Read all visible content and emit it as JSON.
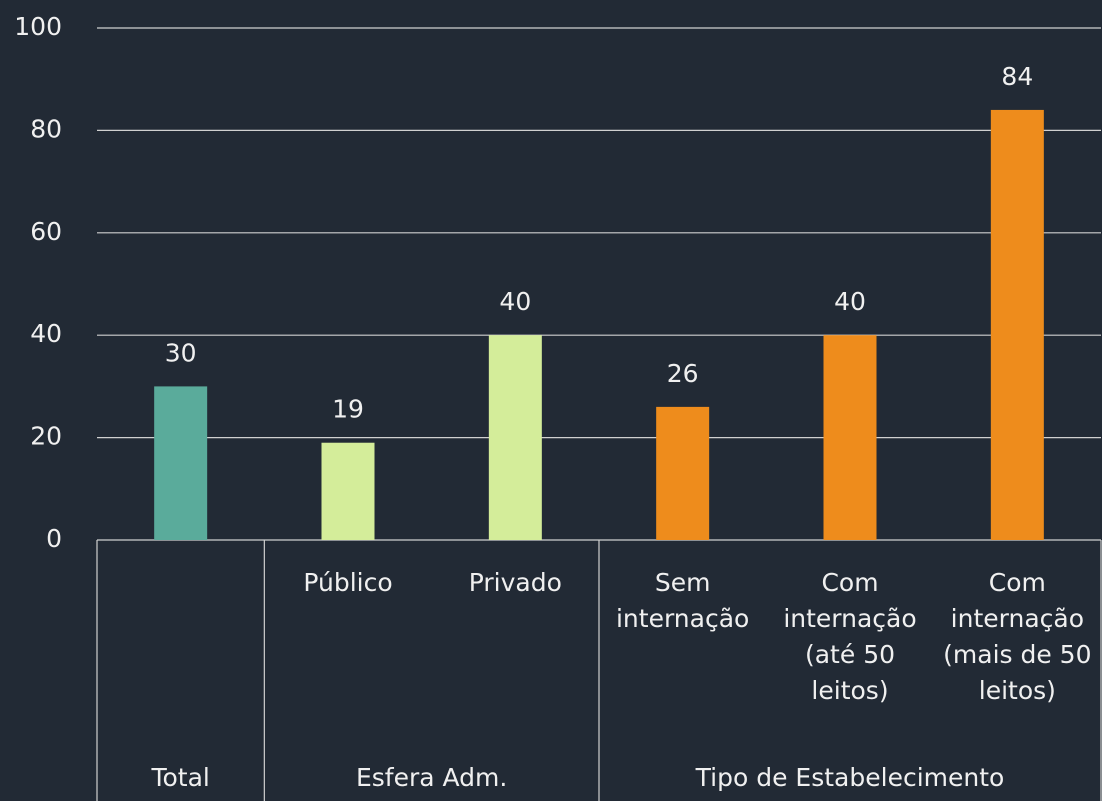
{
  "chart_data": {
    "type": "bar",
    "ylim": [
      0,
      100
    ],
    "yticks": [
      0,
      20,
      40,
      60,
      80,
      100
    ],
    "grid": true,
    "groups": [
      {
        "name": "Total",
        "categories": [
          null
        ],
        "values": [
          30
        ],
        "colors": [
          "#5aab9b"
        ]
      },
      {
        "name": "Esfera Adm.",
        "categories": [
          [
            "Público"
          ],
          [
            "Privado"
          ]
        ],
        "values": [
          19,
          40
        ],
        "colors": [
          "#d4ed9a",
          "#d4ed9a"
        ]
      },
      {
        "name": "Tipo de Estabelecimento",
        "categories": [
          [
            "Sem",
            "internação"
          ],
          [
            "Com",
            "internação",
            "(até 50",
            "leitos)"
          ],
          [
            "Com",
            "internação",
            "(mais de 50",
            "leitos)"
          ]
        ],
        "values": [
          26,
          40,
          84
        ],
        "colors": [
          "#ee8c1c",
          "#ee8c1c",
          "#ee8c1c"
        ]
      }
    ]
  }
}
